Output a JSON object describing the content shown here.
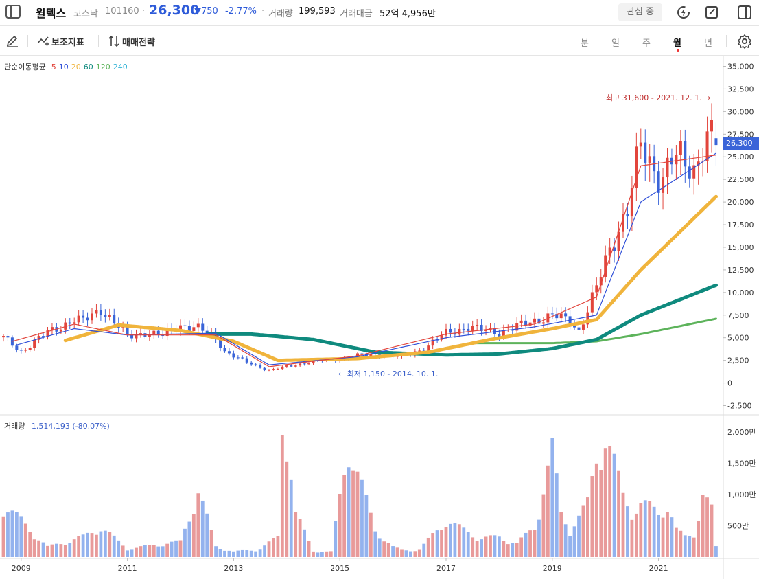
{
  "header": {
    "stock_name": "윌텍스",
    "market": "코스닥",
    "code": "101160",
    "separator": "·",
    "price": "26,300",
    "change": "▼750",
    "change_pct": "-2.77%",
    "volume_label": "거래량",
    "volume_value": "199,593",
    "amount_label": "거래대금",
    "amount_value": "52억 4,956만",
    "watch_label": "관심 중"
  },
  "toolbar": {
    "indicators_label": "보조지표",
    "strategy_label": "매매전략",
    "periods": [
      "분",
      "일",
      "주",
      "월",
      "년"
    ],
    "active_period": "월"
  },
  "legend": {
    "ma_title": "단순이동평균",
    "ma_items": [
      {
        "label": "5",
        "color": "#e2453c"
      },
      {
        "label": "10",
        "color": "#3050d8"
      },
      {
        "label": "20",
        "color": "#f0b43c"
      },
      {
        "label": "60",
        "color": "#0f8a7e"
      },
      {
        "label": "120",
        "color": "#5db35b"
      },
      {
        "label": "240",
        "color": "#33b3d6"
      }
    ],
    "volume_title": "거래량",
    "volume_value": "1,514,193 (-80.07%)"
  },
  "annotations": {
    "high": "최고 31,600 - 2021. 12. 1. →",
    "low": "← 최저 1,150 - 2014. 10. 1.",
    "current_price_tag": "26,300"
  },
  "colors": {
    "up": "#e2453c",
    "down": "#3a64d8",
    "vol_up": "#e89a9a",
    "vol_down": "#93b2ee",
    "vol_flat": "#999999"
  },
  "chart_data": {
    "type": "candlestick",
    "title": "",
    "x_start": "2008-09",
    "x_end": "2022-01",
    "x_tick_labels": [
      "2009",
      "2011",
      "2013",
      "2015",
      "2017",
      "2019",
      "2021"
    ],
    "ylim": [
      -2500,
      35000
    ],
    "y_tick_labels": [
      "35,000",
      "32,500",
      "30,000",
      "27,500",
      "25,000",
      "22,500",
      "20,000",
      "17,500",
      "15,000",
      "12,500",
      "10,000",
      "7,500",
      "5,000",
      "2,500",
      "0",
      "-2,500"
    ],
    "volume_ylim": [
      0,
      2000
    ],
    "volume_tick_labels": [
      "2,000만",
      "1,500만",
      "1,000만",
      "500만"
    ],
    "price_anchors": {
      "months": [
        0,
        4,
        10,
        16,
        18,
        22,
        26,
        28,
        32,
        36,
        40,
        44,
        48,
        50,
        53,
        56,
        60,
        64,
        70,
        75,
        80,
        85,
        90,
        95,
        100,
        105,
        108,
        112,
        116,
        120,
        124,
        128,
        130,
        134,
        138,
        141,
        144,
        146,
        149,
        151,
        154,
        156,
        158,
        160,
        161
      ],
      "values": [
        5000,
        3500,
        5600,
        7000,
        6800,
        8200,
        6200,
        5100,
        5600,
        5200,
        6400,
        6000,
        5000,
        3500,
        2700,
        2100,
        1400,
        1800,
        2400,
        2600,
        3000,
        3200,
        2900,
        3800,
        5500,
        6200,
        5800,
        5600,
        6200,
        6900,
        7500,
        6800,
        5800,
        10500,
        16000,
        19500,
        26000,
        24000,
        23000,
        25000,
        24000,
        23500,
        27000,
        27500,
        26300
      ]
    },
    "ma5_anchors": [
      [
        2,
        4600
      ],
      [
        16,
        6500
      ],
      [
        28,
        5300
      ],
      [
        48,
        5300
      ],
      [
        60,
        1800
      ],
      [
        80,
        3000
      ],
      [
        100,
        5400
      ],
      [
        120,
        6500
      ],
      [
        134,
        9500
      ],
      [
        144,
        24000
      ],
      [
        161,
        25200
      ]
    ],
    "ma10_anchors": [
      [
        3,
        4200
      ],
      [
        16,
        6000
      ],
      [
        28,
        5300
      ],
      [
        48,
        5500
      ],
      [
        60,
        2000
      ],
      [
        80,
        2900
      ],
      [
        100,
        5000
      ],
      [
        120,
        6200
      ],
      [
        134,
        7500
      ],
      [
        144,
        20000
      ],
      [
        161,
        25400
      ]
    ],
    "ma20_anchors": [
      [
        14,
        4700
      ],
      [
        26,
        6400
      ],
      [
        40,
        5800
      ],
      [
        52,
        4600
      ],
      [
        62,
        2500
      ],
      [
        80,
        2700
      ],
      [
        96,
        3400
      ],
      [
        110,
        4800
      ],
      [
        124,
        6000
      ],
      [
        134,
        7000
      ],
      [
        144,
        12500
      ],
      [
        161,
        20600
      ]
    ],
    "ma60_anchors": [
      [
        46,
        5400
      ],
      [
        56,
        5400
      ],
      [
        70,
        4800
      ],
      [
        84,
        3400
      ],
      [
        100,
        3100
      ],
      [
        112,
        3200
      ],
      [
        124,
        3800
      ],
      [
        134,
        4800
      ],
      [
        144,
        7500
      ],
      [
        161,
        10800
      ]
    ],
    "ma120_anchors": [
      [
        106,
        4400
      ],
      [
        124,
        4400
      ],
      [
        134,
        4600
      ],
      [
        144,
        5400
      ],
      [
        161,
        7100
      ]
    ],
    "volume_anchors": {
      "months": [
        0,
        10,
        18,
        22,
        28,
        34,
        40,
        44,
        48,
        52,
        58,
        62,
        63,
        64,
        66,
        70,
        74,
        78,
        84,
        88,
        90,
        94,
        100,
        104,
        108,
        112,
        116,
        120,
        124,
        126,
        128,
        130,
        132,
        134,
        136,
        138,
        140,
        142,
        144,
        146,
        148,
        150,
        152,
        154,
        156,
        158,
        160,
        161
      ],
      "values": [
        800,
        150,
        300,
        450,
        120,
        180,
        230,
        1000,
        160,
        80,
        120,
        300,
        2000,
        1900,
        650,
        90,
        80,
        1700,
        400,
        150,
        100,
        110,
        550,
        400,
        280,
        300,
        200,
        450,
        1600,
        650,
        420,
        600,
        800,
        1500,
        1850,
        1400,
        900,
        700,
        800,
        750,
        650,
        800,
        400,
        300,
        350,
        950,
        700,
        150
      ]
    }
  }
}
